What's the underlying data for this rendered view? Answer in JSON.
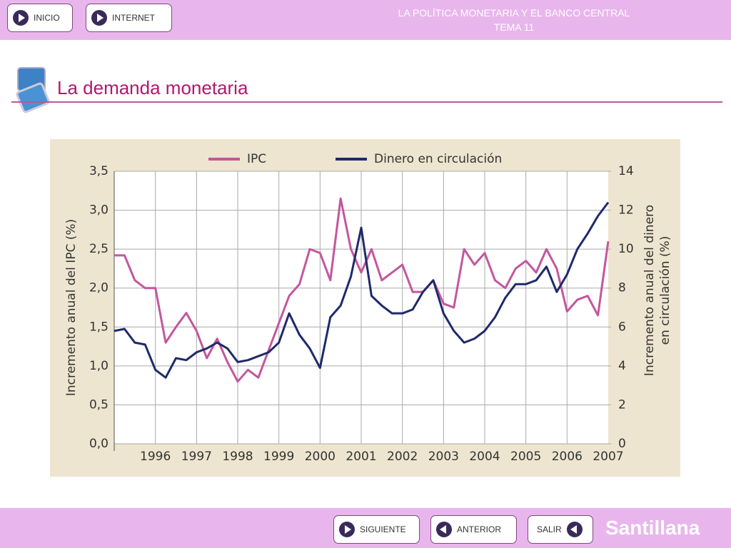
{
  "header": {
    "buttons": [
      "INICIO",
      "INTERNET"
    ],
    "title_lines": [
      "LA POLÍTICA MONETARIA Y EL BANCO CENTRAL",
      "TEMA 11"
    ]
  },
  "section_title": "La demanda monetaria",
  "chart_data": {
    "type": "line",
    "ylabel": "Incremento anual del IPC (%)",
    "y2label": [
      "Incremento anual del dinero",
      "en circulación (%)"
    ],
    "x": [
      1995,
      1995.25,
      1995.5,
      1995.75,
      1996,
      1996.25,
      1996.5,
      1996.75,
      1997,
      1997.25,
      1997.5,
      1997.75,
      1998,
      1998.25,
      1998.5,
      1998.75,
      1999,
      1999.25,
      1999.5,
      1999.75,
      2000,
      2000.25,
      2000.5,
      2000.75,
      2001,
      2001.25,
      2001.5,
      2001.75,
      2002,
      2002.25,
      2002.5,
      2002.75,
      2003,
      2003.25,
      2003.5,
      2003.75,
      2004,
      2004.25,
      2004.5,
      2004.75,
      2005,
      2005.25,
      2005.5,
      2005.75,
      2006,
      2006.25,
      2006.5,
      2006.75,
      2007
    ],
    "series": [
      {
        "name": "IPC",
        "color": "#c4569e",
        "values": [
          2.42,
          2.42,
          2.1,
          2.0,
          2.0,
          1.3,
          1.5,
          1.68,
          1.45,
          1.1,
          1.35,
          1.05,
          0.8,
          0.95,
          0.85,
          1.2,
          1.55,
          1.9,
          2.05,
          2.5,
          2.45,
          2.1,
          3.15,
          2.5,
          2.2,
          2.5,
          2.1,
          2.2,
          2.3,
          1.95,
          1.95,
          2.1,
          1.8,
          1.75,
          2.5,
          2.3,
          2.45,
          2.1,
          2.0,
          2.25,
          2.35,
          2.2,
          2.5,
          2.25,
          1.7,
          1.85,
          1.9,
          1.65,
          2.6
        ]
      },
      {
        "name": "Dinero en circulación",
        "color": "#1f2a6b",
        "axis": "y2",
        "values": [
          5.8,
          5.9,
          5.2,
          5.1,
          3.8,
          3.4,
          4.4,
          4.3,
          4.7,
          4.9,
          5.2,
          4.9,
          4.2,
          4.3,
          4.5,
          4.7,
          5.2,
          6.7,
          5.6,
          4.9,
          3.9,
          6.5,
          7.1,
          8.6,
          11.1,
          7.6,
          7.1,
          6.7,
          6.7,
          6.9,
          7.8,
          8.4,
          6.7,
          5.8,
          5.2,
          5.4,
          5.8,
          6.5,
          7.5,
          8.2,
          8.2,
          8.4,
          9.1,
          7.8,
          8.7,
          10.0,
          10.8,
          11.7,
          12.4
        ]
      }
    ],
    "xlim": [
      1995,
      2007
    ],
    "xticks": [
      1996,
      1997,
      1998,
      1999,
      2000,
      2001,
      2002,
      2003,
      2004,
      2005,
      2006,
      2007
    ],
    "ylim": [
      0,
      3.5
    ],
    "yticks": [
      {
        "value": 0,
        "label": "0,0"
      },
      {
        "value": 0.5,
        "label": "0,5"
      },
      {
        "value": 1,
        "label": "1,0"
      },
      {
        "value": 1.5,
        "label": "1,5"
      },
      {
        "value": 2,
        "label": "2,0"
      },
      {
        "value": 2.5,
        "label": "2,5"
      },
      {
        "value": 3,
        "label": "3,0"
      },
      {
        "value": 3.5,
        "label": "3,5"
      }
    ],
    "y2lim": [
      0,
      14
    ],
    "y2ticks": [
      0,
      2,
      4,
      6,
      8,
      10,
      12,
      14
    ],
    "grid": true
  },
  "footer": {
    "buttons": [
      "SIGUIENTE",
      "ANTERIOR",
      "SALIR"
    ],
    "brand": "Santillana"
  }
}
